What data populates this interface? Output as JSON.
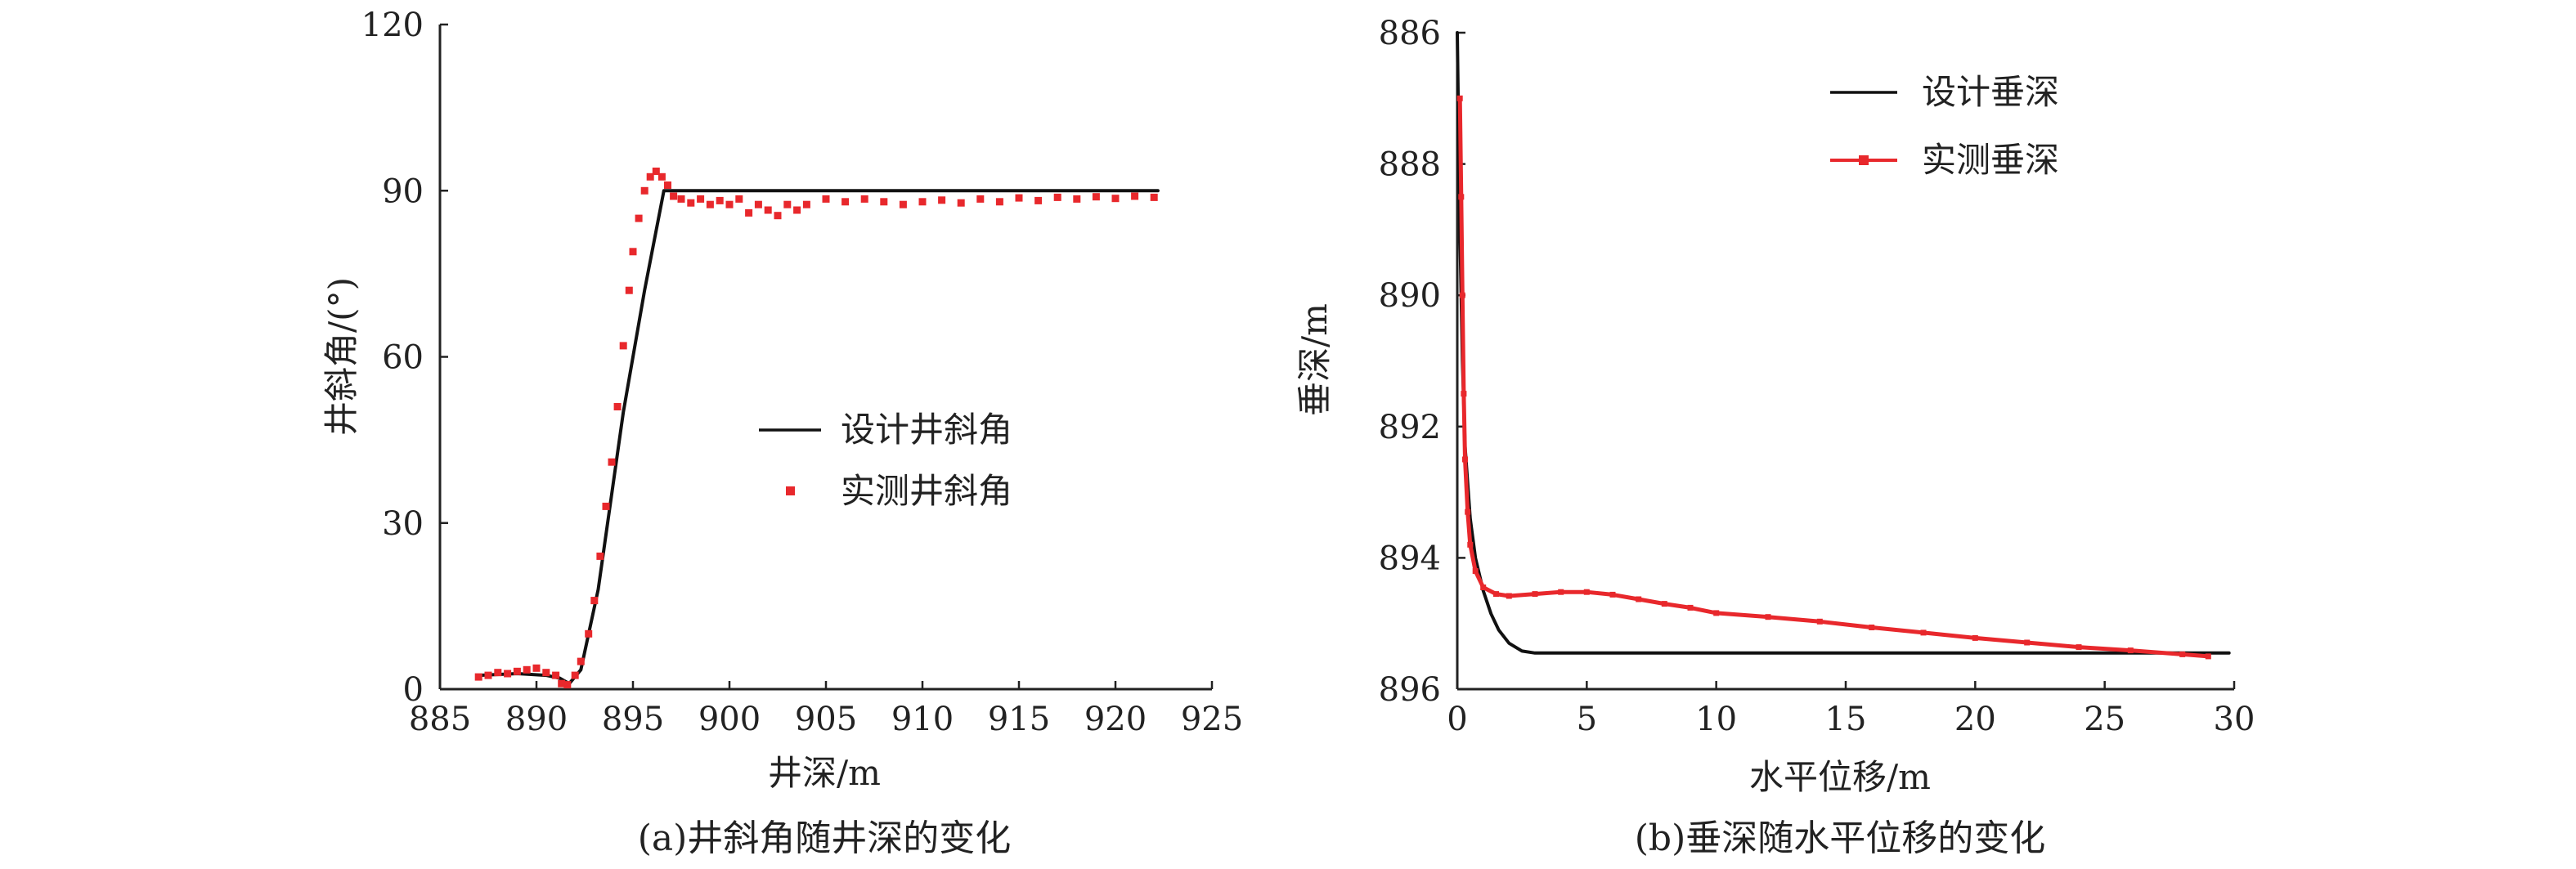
{
  "chart_data": [
    {
      "type": "line",
      "caption": "(a)井斜角随井深的变化",
      "xlabel": "井深/m",
      "ylabel": "井斜角/(°)",
      "xlim": [
        885,
        925
      ],
      "ylim": [
        0,
        120
      ],
      "xticks": [
        "885",
        "890",
        "895",
        "900",
        "905",
        "910",
        "915",
        "920",
        "925"
      ],
      "yticks": [
        "0",
        "30",
        "60",
        "90",
        "120"
      ],
      "legend_position": "center-right",
      "series": [
        {
          "name": "设计井斜角",
          "style": "line",
          "color": "#111111",
          "x": [
            887,
            889,
            890.5,
            891.2,
            891.7,
            892.3,
            893.2,
            894.5,
            895.6,
            896.6,
            900,
            905,
            910,
            915,
            920,
            922.2
          ],
          "y": [
            2.5,
            2.8,
            2.5,
            2.0,
            1.0,
            3.5,
            18,
            50,
            72,
            90,
            90,
            90,
            90,
            90,
            90,
            90
          ]
        },
        {
          "name": "实测井斜角",
          "style": "markers",
          "color": "#e8282c",
          "x": [
            887,
            887.5,
            888,
            888.5,
            889,
            889.5,
            890,
            890.5,
            891,
            891.3,
            891.6,
            892,
            892.3,
            892.7,
            893,
            893.3,
            893.6,
            893.9,
            894.2,
            894.5,
            894.8,
            895,
            895.3,
            895.6,
            895.9,
            896.2,
            896.5,
            896.8,
            897.1,
            897.5,
            898,
            898.5,
            899,
            899.5,
            900,
            900.5,
            901,
            901.5,
            902,
            902.5,
            903,
            903.5,
            904,
            905,
            906,
            907,
            908,
            909,
            910,
            911,
            912,
            913,
            914,
            915,
            916,
            917,
            918,
            919,
            920,
            921,
            922
          ],
          "y": [
            2.2,
            2.5,
            3.0,
            2.8,
            3.2,
            3.5,
            3.8,
            3.0,
            2.5,
            1.0,
            0.8,
            2.5,
            5.0,
            10,
            16,
            24,
            33,
            41,
            51,
            62,
            72,
            79,
            85,
            90,
            92.5,
            93.5,
            92.5,
            91,
            89,
            88.5,
            87.8,
            88.5,
            87.5,
            88.2,
            87.5,
            88.5,
            86,
            87.5,
            86.5,
            85.5,
            87.5,
            86.5,
            87.5,
            88.5,
            88,
            88.5,
            88,
            87.5,
            88,
            88.3,
            87.8,
            88.5,
            88,
            88.7,
            88.2,
            88.8,
            88.5,
            88.9,
            88.6,
            89,
            88.8
          ]
        }
      ]
    },
    {
      "type": "line",
      "caption": "(b)垂深随水平位移的变化",
      "xlabel": "水平位移/m",
      "ylabel": "垂深/m",
      "xlim": [
        0,
        30
      ],
      "ylim": [
        896,
        886
      ],
      "y_inverted": true,
      "xticks": [
        "0",
        "5",
        "10",
        "15",
        "20",
        "25",
        "30"
      ],
      "yticks": [
        "886",
        "888",
        "890",
        "892",
        "894",
        "896"
      ],
      "legend_position": "top-right",
      "series": [
        {
          "name": "设计垂深",
          "style": "line",
          "color": "#111111",
          "x": [
            0,
            0.05,
            0.1,
            0.2,
            0.3,
            0.5,
            0.7,
            1.0,
            1.3,
            1.6,
            2.0,
            2.5,
            3.0,
            5,
            10,
            15,
            20,
            25,
            29.8
          ],
          "y": [
            886,
            887.5,
            889,
            891,
            892.3,
            893.4,
            894.0,
            894.5,
            894.85,
            895.1,
            895.3,
            895.42,
            895.45,
            895.45,
            895.45,
            895.45,
            895.45,
            895.45,
            895.45
          ]
        },
        {
          "name": "实测垂深",
          "style": "line-markers",
          "color": "#e8282c",
          "x": [
            0.1,
            0.15,
            0.2,
            0.25,
            0.3,
            0.4,
            0.5,
            0.7,
            1.0,
            1.5,
            2.0,
            3.0,
            4.0,
            5.0,
            6.0,
            7.0,
            8.0,
            9.0,
            10.0,
            12.0,
            14.0,
            16.0,
            18.0,
            20.0,
            22.0,
            24.0,
            26.0,
            28.0,
            29.0
          ],
          "y": [
            887.0,
            888.5,
            890.0,
            891.5,
            892.5,
            893.3,
            893.8,
            894.2,
            894.45,
            894.55,
            894.58,
            894.55,
            894.52,
            894.52,
            894.56,
            894.63,
            894.7,
            894.76,
            894.84,
            894.9,
            894.97,
            895.06,
            895.14,
            895.22,
            895.29,
            895.36,
            895.41,
            895.47,
            895.5
          ]
        }
      ]
    }
  ]
}
